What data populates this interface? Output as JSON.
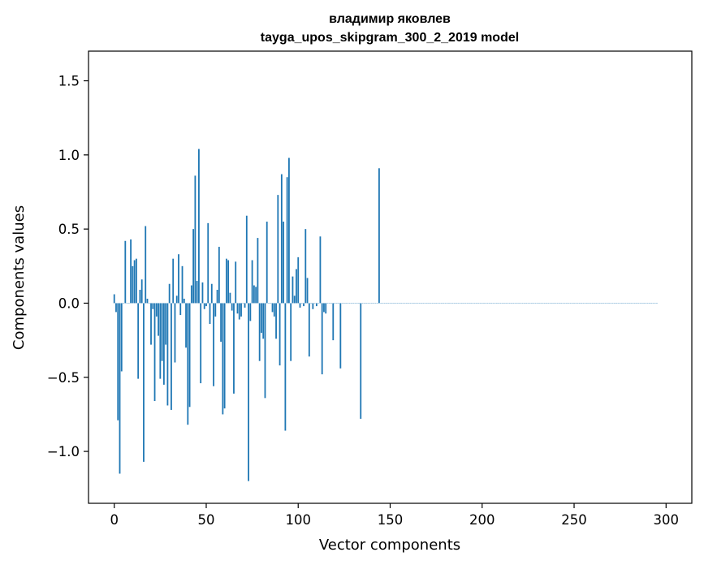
{
  "chart_data": {
    "type": "bar",
    "title": "владимир яковлев",
    "subtitle": "tayga_upos_skipgram_300_2_2019 model",
    "xlabel": "Vector components",
    "ylabel": "Components values",
    "xlim": [
      -14,
      314
    ],
    "ylim": [
      -1.35,
      1.7
    ],
    "xticks": [
      0,
      50,
      100,
      150,
      200,
      250,
      300
    ],
    "xtick_labels": [
      "0",
      "50",
      "100",
      "150",
      "200",
      "250",
      "300"
    ],
    "yticks": [
      -1.0,
      -0.5,
      0.0,
      0.5,
      1.0,
      1.5
    ],
    "ytick_labels": [
      "−1.0",
      "−0.5",
      "0.0",
      "0.5",
      "1.0",
      "1.5"
    ],
    "bar_color": "#1f77b4",
    "grid": false,
    "legend": "none",
    "x": "0..299 (component index)",
    "values": [
      0.06,
      -0.06,
      -0.79,
      -1.15,
      -0.46,
      0.0,
      0.42,
      0.0,
      0.0,
      0.43,
      0.25,
      0.29,
      0.3,
      -0.51,
      0.09,
      0.16,
      -1.07,
      0.52,
      0.03,
      0.0,
      -0.28,
      -0.04,
      -0.66,
      -0.09,
      -0.22,
      -0.51,
      -0.39,
      -0.55,
      -0.28,
      -0.69,
      0.13,
      -0.72,
      0.3,
      -0.4,
      0.05,
      0.33,
      -0.08,
      0.25,
      0.03,
      -0.3,
      -0.82,
      -0.7,
      0.12,
      0.5,
      0.86,
      0.15,
      1.04,
      -0.54,
      0.14,
      -0.04,
      -0.02,
      0.54,
      -0.14,
      0.13,
      -0.56,
      -0.09,
      0.09,
      0.38,
      -0.26,
      -0.75,
      -0.71,
      0.3,
      0.29,
      0.07,
      -0.05,
      -0.61,
      0.28,
      -0.07,
      -0.11,
      -0.09,
      0.0,
      -0.03,
      0.59,
      -1.2,
      -0.12,
      0.29,
      0.12,
      0.11,
      0.44,
      -0.39,
      -0.2,
      -0.24,
      -0.64,
      0.55,
      0.0,
      0.0,
      -0.06,
      -0.09,
      -0.24,
      0.73,
      -0.42,
      0.87,
      0.55,
      -0.86,
      0.85,
      0.98,
      -0.39,
      0.18,
      0.05,
      0.23,
      0.31,
      -0.03,
      0.0,
      -0.02,
      0.5,
      0.17,
      -0.36,
      0.0,
      -0.04,
      0.0,
      -0.02,
      0.0,
      0.45,
      -0.48,
      -0.06,
      -0.07,
      0.0,
      0.0,
      0.0,
      -0.25,
      0.0,
      0.0,
      0.0,
      -0.44,
      0.0,
      0.0,
      0.0,
      0.0,
      0.0,
      0.0,
      0.0,
      0.0,
      0.0,
      0.0,
      -0.78,
      0.0,
      0.0,
      0.0,
      0.0,
      0.0,
      0.0,
      0.0,
      0.0,
      0.0,
      0.91,
      0.0,
      0.0,
      0.0,
      0.0,
      0.0,
      0.0,
      0.0,
      0.0,
      0.0,
      0.0,
      0.0,
      0.0,
      0.0,
      0.0,
      0.0,
      0.0,
      0.0,
      0.0,
      0.0,
      0.0,
      0.0,
      0.0,
      0.0,
      0.0,
      0.0,
      0.0,
      0.0,
      0.0,
      0.0,
      0.0,
      0.0,
      0.0,
      0.0,
      0.0,
      0.0,
      0.0,
      0.0,
      0.0,
      0.0,
      0.0,
      0.0,
      0.0,
      0.0,
      0.0,
      0.0,
      0.0,
      0.0,
      0.0,
      0.0,
      0.0,
      0.0,
      0.0,
      0.0,
      0.0,
      0.0,
      0.0,
      0.0,
      0.0,
      0.0,
      0.0,
      0.0,
      0.0,
      0.0,
      0.0,
      0.0,
      0.0,
      0.0,
      0.0,
      0.0,
      0.0,
      0.0,
      0.0,
      0.0,
      0.0,
      0.0,
      0.0,
      0.0,
      0.0,
      0.0,
      0.0,
      0.0,
      0.0,
      0.0,
      0.0,
      0.0,
      0.0,
      0.0,
      0.0,
      0.0,
      0.0,
      0.0,
      0.0,
      0.0,
      0.0,
      0.0,
      0.0,
      0.0,
      0.0,
      0.0,
      0.0,
      0.0,
      0.0,
      0.0,
      0.0,
      0.0,
      0.0,
      0.0,
      0.0,
      0.0,
      0.0,
      0.0,
      0.0,
      0.0,
      0.0,
      0.0,
      0.0,
      0.0,
      0.0,
      0.0,
      0.0,
      0.0,
      0.0,
      0.0,
      0.0,
      0.0,
      0.0,
      0.0,
      0.0,
      0.0,
      0.0,
      0.0,
      0.0,
      0.0,
      0.0,
      0.0,
      0.0,
      0.0,
      0.0,
      0.0,
      0.0,
      0.0,
      0.0,
      0.0,
      0.0,
      0.0,
      0.0,
      0.0,
      0.0,
      0.0,
      0.0,
      0.0
    ]
  }
}
